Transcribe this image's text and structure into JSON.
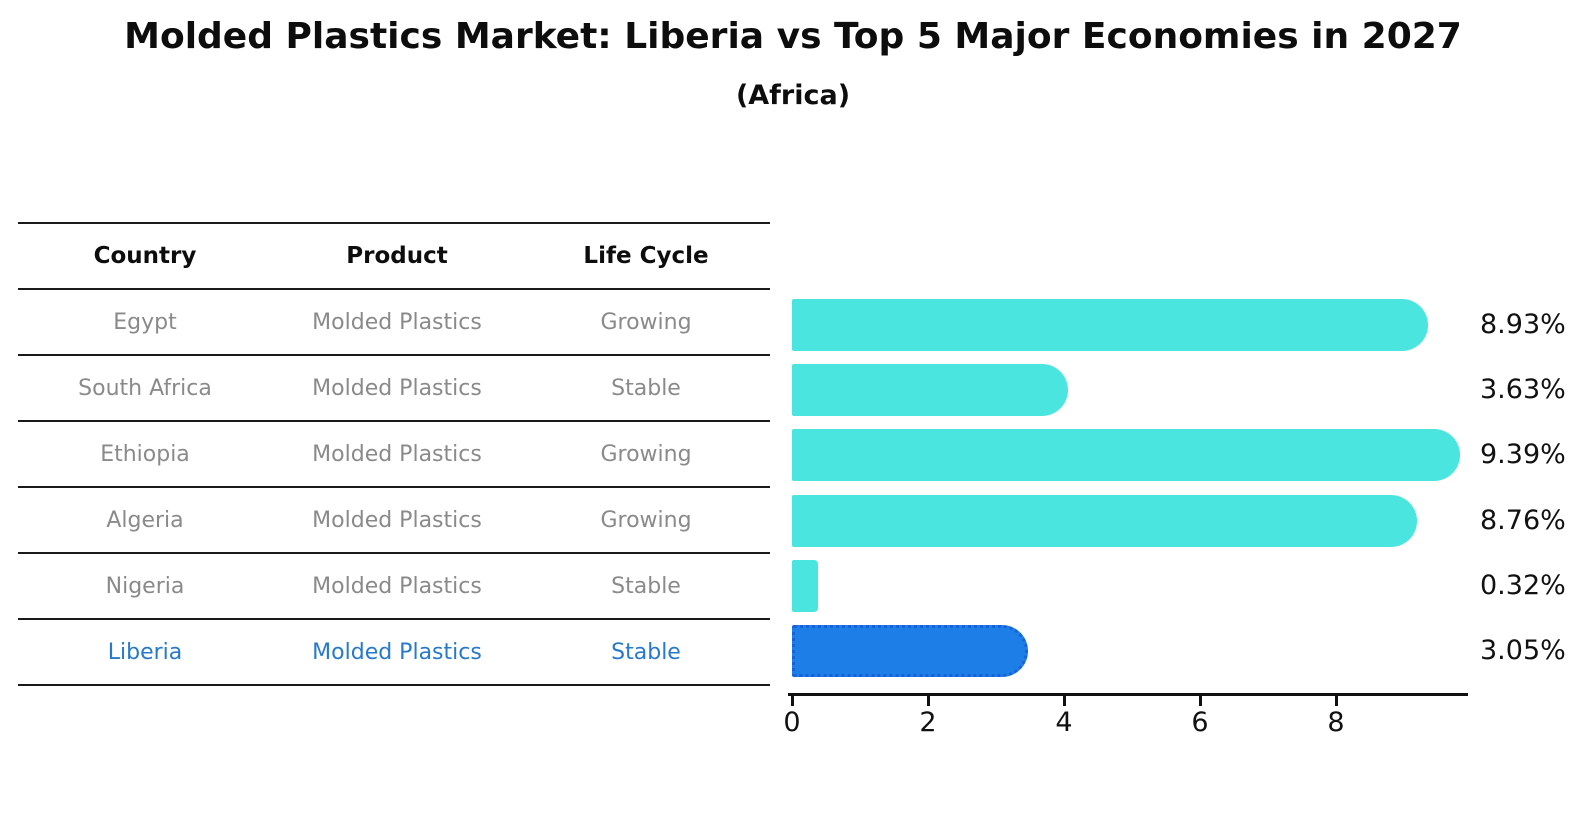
{
  "title": "Molded Plastics Market: Liberia vs Top 5 Major Economies in 2027",
  "subtitle": "(Africa)",
  "table": {
    "headers": [
      "Country",
      "Product",
      "Life Cycle"
    ],
    "rows": [
      {
        "country": "Egypt",
        "product": "Molded Plastics",
        "life_cycle": "Growing",
        "highlight": false
      },
      {
        "country": "South Africa",
        "product": "Molded Plastics",
        "life_cycle": "Stable",
        "highlight": false
      },
      {
        "country": "Ethiopia",
        "product": "Molded Plastics",
        "life_cycle": "Growing",
        "highlight": false
      },
      {
        "country": "Algeria",
        "product": "Molded Plastics",
        "life_cycle": "Growing",
        "highlight": false
      },
      {
        "country": "Nigeria",
        "product": "Molded Plastics",
        "life_cycle": "Stable",
        "highlight": false
      },
      {
        "country": "Liberia",
        "product": "Molded Plastics",
        "life_cycle": "Stable",
        "highlight": true
      }
    ]
  },
  "chart_data": {
    "type": "bar",
    "orientation": "horizontal",
    "title": "Molded Plastics Market: Liberia vs Top 5 Major Economies in 2027",
    "subtitle": "(Africa)",
    "categories": [
      "Egypt",
      "South Africa",
      "Ethiopia",
      "Algeria",
      "Nigeria",
      "Liberia"
    ],
    "values": [
      8.93,
      3.63,
      9.39,
      8.76,
      0.32,
      3.05
    ],
    "value_labels": [
      "8.93%",
      "3.63%",
      "9.39%",
      "8.76%",
      "0.32%",
      "3.05%"
    ],
    "x_ticks": [
      0,
      2,
      4,
      6,
      8
    ],
    "xlim": [
      0,
      10
    ],
    "grid": false,
    "legend": "none",
    "highlight_category": "Liberia",
    "colors": {
      "bar": "#4ae5df",
      "highlight_bar": "#1e7ee8",
      "highlight_bar_border": "#1663d9",
      "highlight_text": "#2779c9",
      "row_text": "#8a8a8a",
      "header_text": "#0d0d0d",
      "axis": "#111111",
      "value_label": "#111111"
    }
  }
}
